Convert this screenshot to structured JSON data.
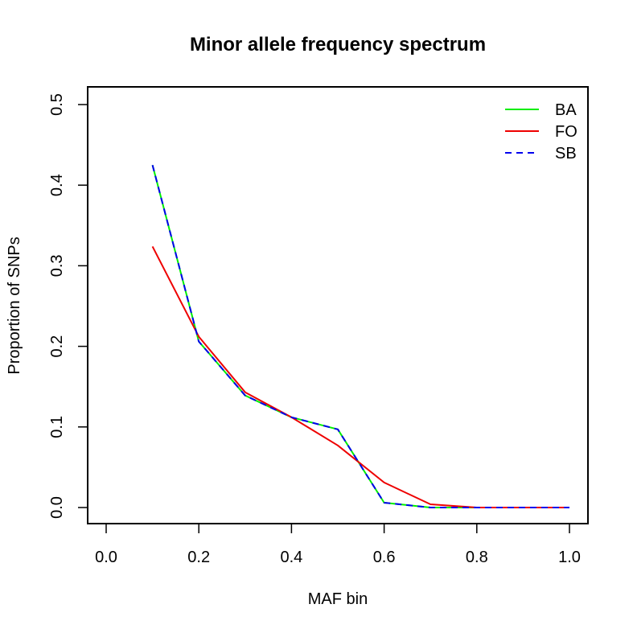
{
  "chart_data": {
    "type": "line",
    "title": "Minor allele frequency spectrum",
    "xlabel": "MAF bin",
    "ylabel": "Proportion of SNPs",
    "xlim": [
      0.0,
      1.0
    ],
    "ylim": [
      0.0,
      0.5
    ],
    "x_ticks": [
      "0.0",
      "0.2",
      "0.4",
      "0.6",
      "0.8",
      "1.0"
    ],
    "y_ticks": [
      "0.0",
      "0.1",
      "0.2",
      "0.3",
      "0.4",
      "0.5"
    ],
    "x": [
      0.1,
      0.2,
      0.3,
      0.4,
      0.5,
      0.6,
      0.7,
      0.8,
      0.9,
      1.0
    ],
    "legend_position": "top-right",
    "series": [
      {
        "name": "BA",
        "color": "#00ee00",
        "dash": "solid",
        "values": [
          0.425,
          0.206,
          0.139,
          0.112,
          0.097,
          0.006,
          0.0,
          0.0,
          0.0,
          0.0
        ]
      },
      {
        "name": "FO",
        "color": "#ee0000",
        "dash": "solid",
        "values": [
          0.324,
          0.212,
          0.143,
          0.112,
          0.077,
          0.031,
          0.004,
          0.0,
          0.0,
          0.0
        ]
      },
      {
        "name": "SB",
        "color": "#0000ee",
        "dash": "dashed",
        "values": [
          0.425,
          0.206,
          0.139,
          0.112,
          0.097,
          0.006,
          0.0,
          0.0,
          0.0,
          0.0
        ]
      }
    ]
  }
}
